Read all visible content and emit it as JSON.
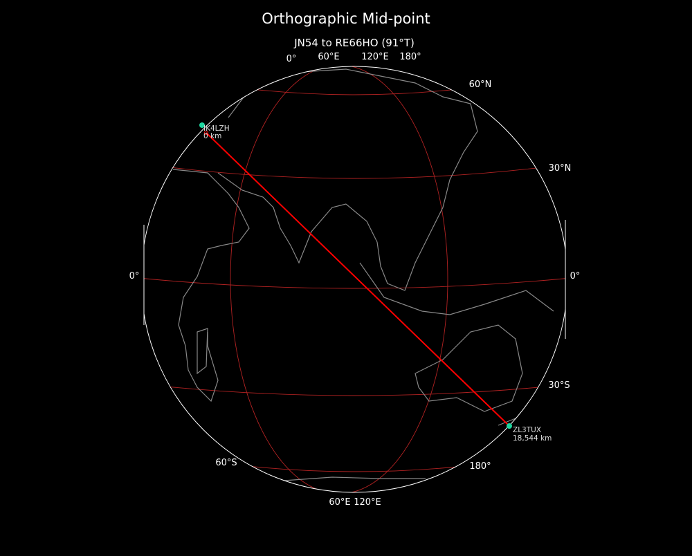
{
  "title": "Orthographic Mid-point",
  "subtitle": "JN54 to RE66HO (91°T)",
  "colors": {
    "background": "#000000",
    "path": "#ff0000",
    "graticule": "#b22222",
    "coast": "#888888",
    "station": "#1fd6a0",
    "outline": "#ffffff"
  },
  "map": {
    "projection": "orthographic",
    "path_type": "great-circle"
  },
  "graticule_labels": {
    "top": [
      "0°",
      "60°E",
      "120°E",
      "180°"
    ],
    "bottom": [
      "60°E",
      "120°E"
    ],
    "left": [
      "0°",
      "60°S"
    ],
    "right": [
      "60°N",
      "30°N",
      "0°",
      "30°S",
      "180°"
    ]
  },
  "stations": [
    {
      "call": "IK4LZH",
      "distance": "0 km"
    },
    {
      "call": "ZL3TUX",
      "distance": "18,544 km"
    }
  ]
}
